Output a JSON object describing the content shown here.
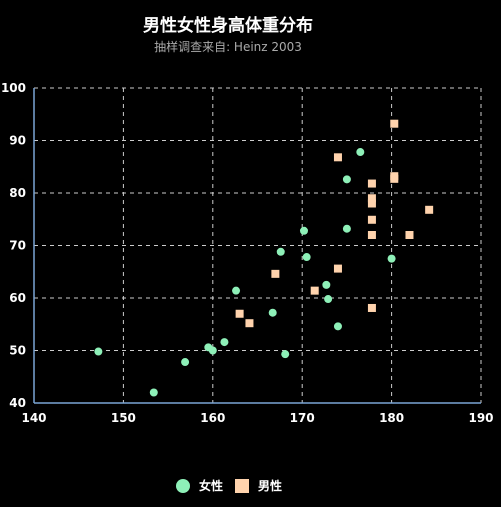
{
  "chart_data": {
    "type": "scatter",
    "title": "男性女性身高体重分布",
    "subtitle": "抽样调查来自: Heinz  2003",
    "xlim": [
      140,
      190
    ],
    "ylim": [
      40,
      100
    ],
    "x_ticks": [
      "140",
      "150",
      "160",
      "170",
      "180",
      "190"
    ],
    "y_ticks": [
      "40",
      "50",
      "60",
      "70",
      "80",
      "90",
      "100"
    ],
    "grid": true,
    "legend_position": "bottom-center",
    "series": [
      {
        "name": "女性",
        "marker": "circle",
        "color": "#8ef0b8",
        "points": [
          [
            147.2,
            49.8
          ],
          [
            153.4,
            42.0
          ],
          [
            156.9,
            47.8
          ],
          [
            159.5,
            50.6
          ],
          [
            160.0,
            50.0
          ],
          [
            161.3,
            51.6
          ],
          [
            162.6,
            61.4
          ],
          [
            166.7,
            57.2
          ],
          [
            167.6,
            68.8
          ],
          [
            168.1,
            49.3
          ],
          [
            170.2,
            72.8
          ],
          [
            170.5,
            67.8
          ],
          [
            172.7,
            62.5
          ],
          [
            172.9,
            59.8
          ],
          [
            174.0,
            54.6
          ],
          [
            175.0,
            82.6
          ],
          [
            175.0,
            73.2
          ],
          [
            176.5,
            87.8
          ],
          [
            180.0,
            67.5
          ]
        ]
      },
      {
        "name": "男性",
        "marker": "square",
        "color": "#ffd3ad",
        "points": [
          [
            163.0,
            57.0
          ],
          [
            164.1,
            55.2
          ],
          [
            167.0,
            64.6
          ],
          [
            171.4,
            61.4
          ],
          [
            174.0,
            65.6
          ],
          [
            174.0,
            86.8
          ],
          [
            177.8,
            81.8
          ],
          [
            177.8,
            79.0
          ],
          [
            177.8,
            78.0
          ],
          [
            177.8,
            74.9
          ],
          [
            177.8,
            72.0
          ],
          [
            177.8,
            58.1
          ],
          [
            180.3,
            83.2
          ],
          [
            180.3,
            82.7
          ],
          [
            180.3,
            93.2
          ],
          [
            182.0,
            72.0
          ],
          [
            184.2,
            76.8
          ]
        ]
      }
    ]
  }
}
